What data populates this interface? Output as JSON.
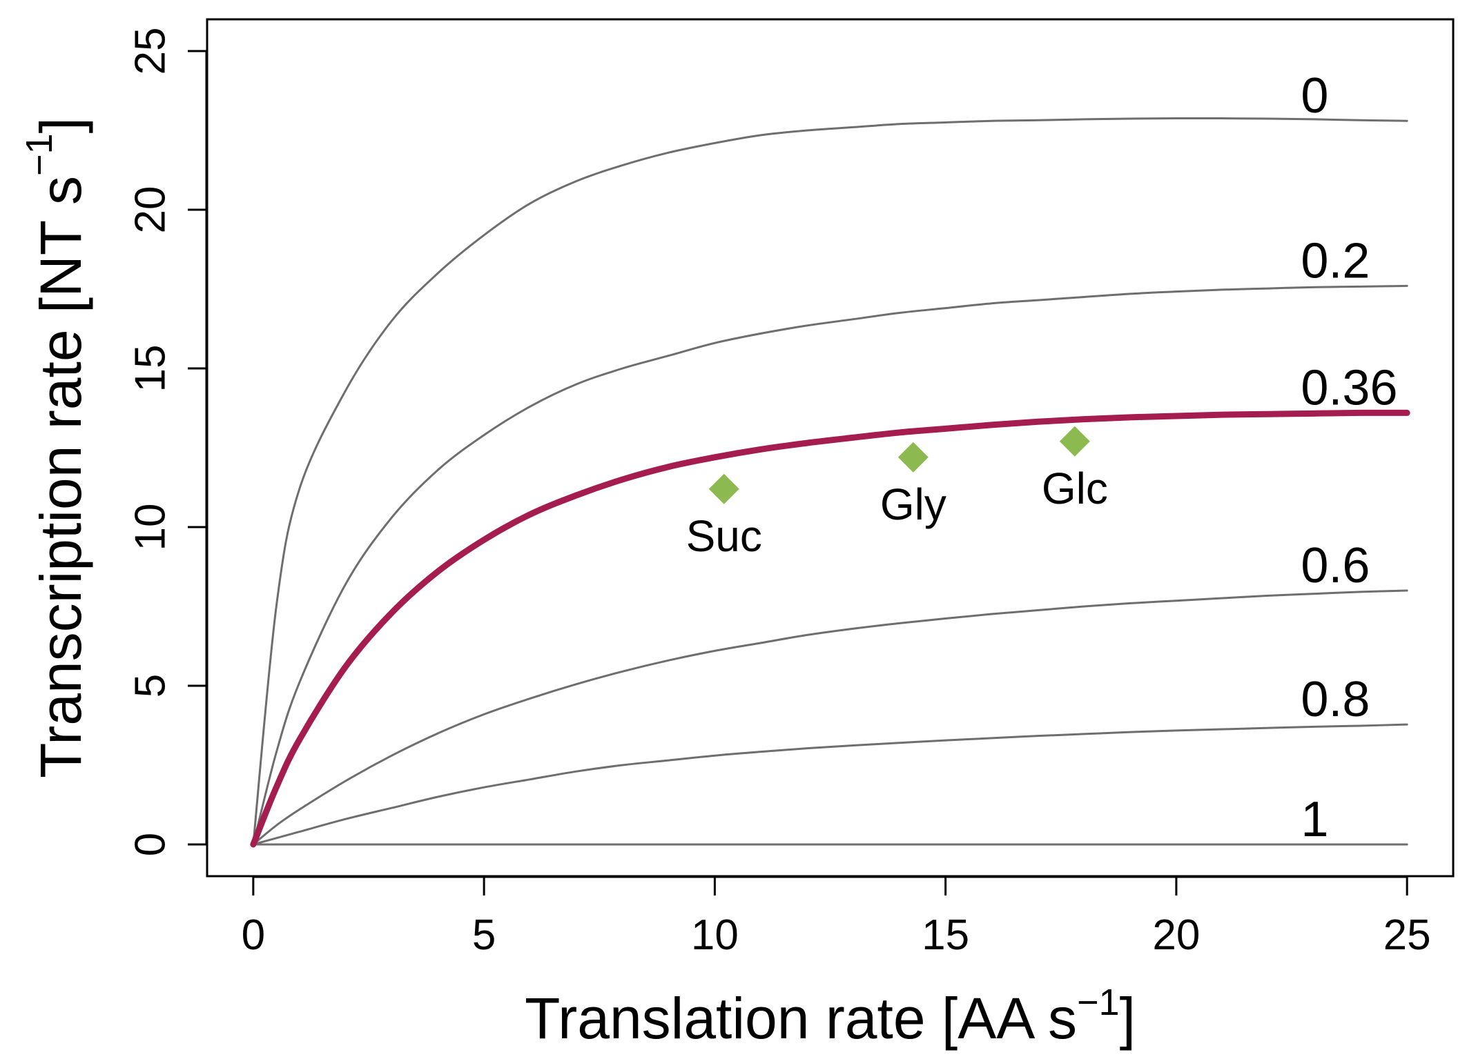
{
  "chart_data": {
    "type": "line",
    "xlabel": {
      "main": "Translation rate [AA s",
      "sup": "−1",
      "end": "]"
    },
    "ylabel": {
      "main": "Transcription rate [NT s",
      "sup": "−1",
      "end": "]"
    },
    "xlim": [
      -1,
      26
    ],
    "ylim": [
      -1,
      26
    ],
    "xticks": [
      0,
      5,
      10,
      15,
      20,
      25
    ],
    "yticks": [
      0,
      5,
      10,
      15,
      20,
      25
    ],
    "grid": false,
    "colors": {
      "highlight": "#a51d4e",
      "curve": "#6e6e6e",
      "point": "#8cba50"
    },
    "x": [
      0,
      0.5,
      1,
      2,
      3,
      4,
      5,
      6,
      7,
      8,
      9,
      10,
      11,
      12,
      13,
      14,
      15,
      16,
      17,
      18,
      19,
      20,
      21,
      22,
      23,
      24,
      25
    ],
    "series": [
      {
        "name": "0",
        "highlight": false,
        "values": [
          0,
          7.5,
          11.2,
          14.3,
          16.5,
          18.0,
          19.2,
          20.2,
          20.9,
          21.4,
          21.8,
          22.1,
          22.35,
          22.5,
          22.6,
          22.7,
          22.75,
          22.8,
          22.82,
          22.85,
          22.87,
          22.88,
          22.88,
          22.87,
          22.85,
          22.82,
          22.8
        ]
      },
      {
        "name": "0.2",
        "highlight": false,
        "values": [
          0,
          2.9,
          5.1,
          8.2,
          10.3,
          11.8,
          12.9,
          13.8,
          14.5,
          15.0,
          15.4,
          15.8,
          16.1,
          16.35,
          16.55,
          16.75,
          16.9,
          17.05,
          17.15,
          17.25,
          17.35,
          17.42,
          17.48,
          17.52,
          17.56,
          17.58,
          17.6
        ]
      },
      {
        "name": "0.36",
        "highlight": true,
        "values": [
          0,
          1.8,
          3.3,
          5.6,
          7.3,
          8.6,
          9.6,
          10.4,
          11.0,
          11.5,
          11.9,
          12.2,
          12.45,
          12.65,
          12.82,
          12.98,
          13.1,
          13.22,
          13.32,
          13.4,
          13.46,
          13.5,
          13.54,
          13.56,
          13.58,
          13.6,
          13.6
        ]
      },
      {
        "name": "0.6",
        "highlight": false,
        "values": [
          0,
          0.6,
          1.1,
          2.0,
          2.8,
          3.5,
          4.1,
          4.6,
          5.05,
          5.45,
          5.8,
          6.1,
          6.35,
          6.6,
          6.8,
          6.97,
          7.12,
          7.26,
          7.38,
          7.5,
          7.6,
          7.68,
          7.76,
          7.84,
          7.9,
          7.96,
          8.0
        ]
      },
      {
        "name": "0.8",
        "highlight": false,
        "values": [
          0,
          0.2,
          0.4,
          0.8,
          1.15,
          1.5,
          1.8,
          2.05,
          2.3,
          2.5,
          2.65,
          2.8,
          2.92,
          3.03,
          3.12,
          3.2,
          3.28,
          3.35,
          3.42,
          3.48,
          3.54,
          3.59,
          3.63,
          3.67,
          3.71,
          3.74,
          3.78
        ]
      },
      {
        "name": "1",
        "highlight": false,
        "values": [
          0,
          0,
          0,
          0,
          0,
          0,
          0,
          0,
          0,
          0,
          0,
          0,
          0,
          0,
          0,
          0,
          0,
          0,
          0,
          0,
          0,
          0,
          0,
          0,
          0,
          0,
          0
        ]
      }
    ],
    "points": [
      {
        "label": "Suc",
        "x": 10.2,
        "y": 11.2,
        "label_pos": "below"
      },
      {
        "label": "Gly",
        "x": 14.3,
        "y": 12.2,
        "label_pos": "below"
      },
      {
        "label": "Glc",
        "x": 17.8,
        "y": 12.7,
        "label_pos": "below"
      }
    ]
  }
}
